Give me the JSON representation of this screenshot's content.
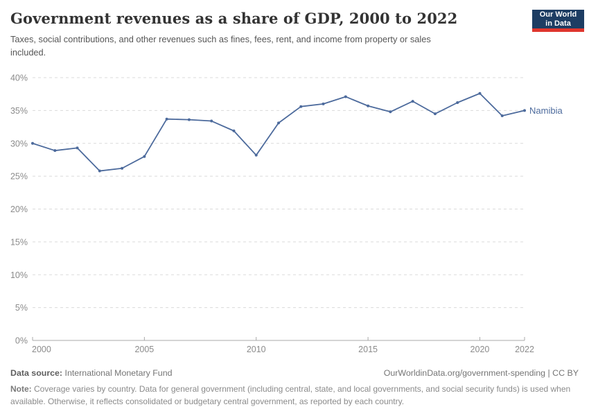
{
  "header": {
    "title": "Government revenues as a share of GDP, 2000 to 2022",
    "subtitle": "Taxes, social contributions, and other revenues such as fines, fees, rent, and income from property or sales included.",
    "logo_line1": "Our World",
    "logo_line2": "in Data"
  },
  "chart_data": {
    "type": "line",
    "title": "Government revenues as a share of GDP, 2000 to 2022",
    "x": [
      2000,
      2001,
      2002,
      2003,
      2004,
      2005,
      2006,
      2007,
      2008,
      2009,
      2010,
      2011,
      2012,
      2013,
      2014,
      2015,
      2016,
      2017,
      2018,
      2019,
      2020,
      2021,
      2022
    ],
    "series": [
      {
        "name": "Namibia",
        "color": "#4c6a9c",
        "values": [
          30.0,
          28.9,
          29.3,
          25.8,
          26.2,
          28.0,
          33.7,
          33.6,
          33.4,
          31.9,
          28.2,
          33.1,
          35.6,
          36.0,
          37.1,
          35.7,
          34.8,
          36.4,
          34.5,
          36.2,
          37.6,
          34.2,
          35.0
        ]
      }
    ],
    "xticks": [
      2000,
      2005,
      2010,
      2015,
      2020,
      2022
    ],
    "ylim": [
      0,
      40
    ],
    "ytick_step": 5,
    "ytick_suffix": "%",
    "grid": "horizontal-dashed",
    "legend_position": "end-of-line-label"
  },
  "footer": {
    "data_source_label": "Data source:",
    "data_source_value": " International Monetary Fund",
    "link": "OurWorldinData.org/government-spending | CC BY",
    "note_label": "Note:",
    "note_value": " Coverage varies by country. Data for general government (including central, state, and local governments, and social security funds) is used when available. Otherwise, it reflects consolidated or budgetary central government, as reported by each country."
  },
  "colors": {
    "line": "#4c6a9c",
    "grid": "#dadada",
    "axis": "#a8a8a8",
    "tick_label": "#8b8b8b",
    "logo_bg": "#1d3d63",
    "logo_stripe": "#e0362d"
  }
}
